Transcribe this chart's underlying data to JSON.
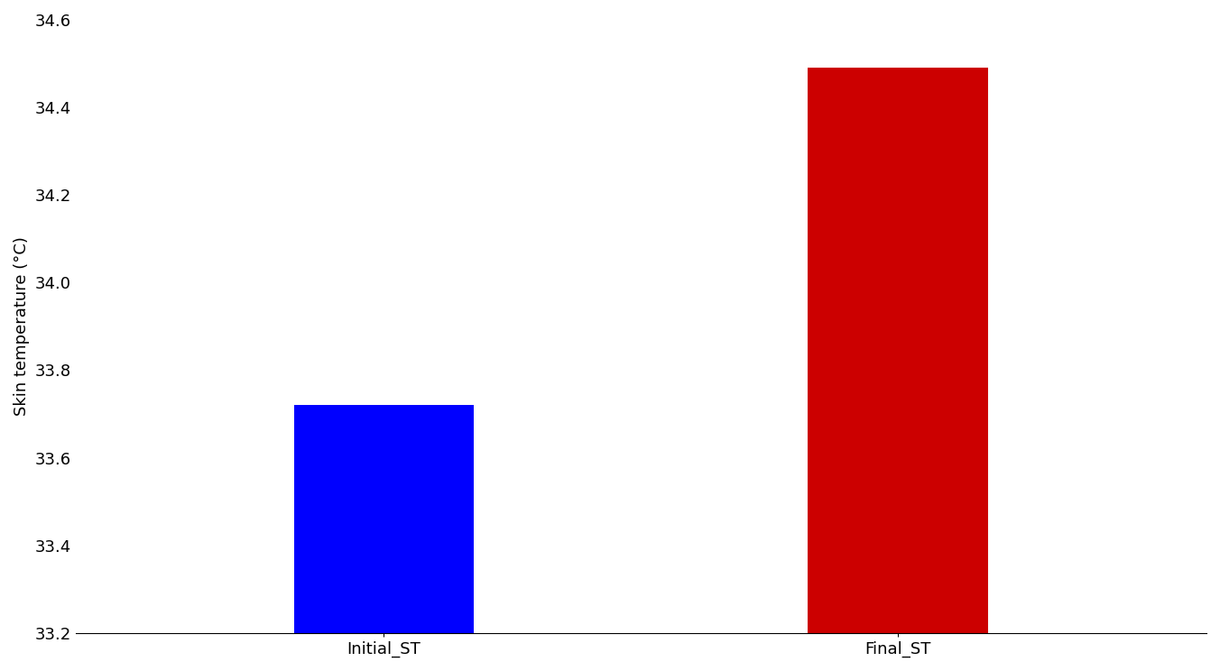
{
  "categories": [
    "Initial_ST",
    "Final_ST"
  ],
  "values": [
    33.72,
    34.49
  ],
  "bar_colors": [
    "#0000ff",
    "#cc0000"
  ],
  "ylabel": "Skin temperature (°C)",
  "ylim": [
    33.2,
    34.6
  ],
  "yticks": [
    33.2,
    33.4,
    33.6,
    33.8,
    34.0,
    34.2,
    34.4,
    34.6
  ],
  "background_color": "#ffffff",
  "bar_width": 0.35,
  "tick_label_fontsize": 13,
  "ylabel_fontsize": 13
}
